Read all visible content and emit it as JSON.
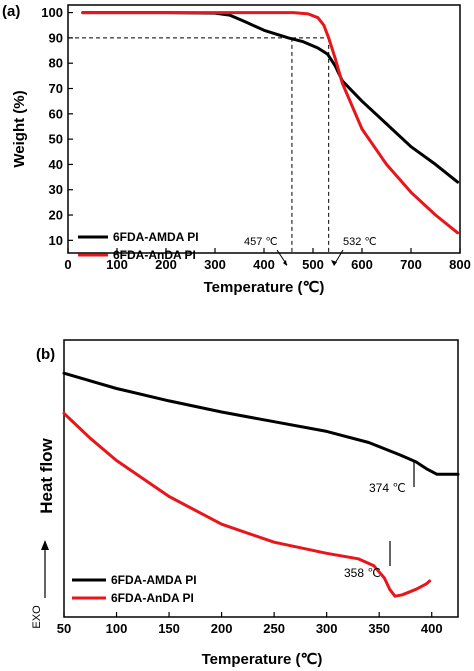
{
  "chart_data": [
    {
      "panel_label": "(a)",
      "type": "line",
      "xlabel": "Temperature (℃)",
      "ylabel": "Weight (%)",
      "xlim": [
        0,
        800
      ],
      "ylim": [
        5,
        103
      ],
      "xticks": [
        0,
        100,
        200,
        300,
        400,
        500,
        600,
        700,
        800
      ],
      "yticks": [
        10,
        20,
        30,
        40,
        50,
        60,
        70,
        80,
        90,
        100
      ],
      "grid": false,
      "legend_position": "bottom-left",
      "series": [
        {
          "name": "6FDA-AMDA PI",
          "color": "#000000",
          "points": [
            [
              30,
              100
            ],
            [
              100,
              100
            ],
            [
              200,
              100
            ],
            [
              300,
              99.8
            ],
            [
              330,
              99
            ],
            [
              360,
              96.5
            ],
            [
              400,
              93
            ],
            [
              450,
              90
            ],
            [
              480,
              88.5
            ],
            [
              510,
              86
            ],
            [
              530,
              83.5
            ],
            [
              545,
              79
            ],
            [
              560,
              73
            ],
            [
              600,
              65
            ],
            [
              650,
              56
            ],
            [
              700,
              47
            ],
            [
              750,
              40
            ],
            [
              795,
              33
            ]
          ]
        },
        {
          "name": "6FDA-AnDA PI",
          "color": "#e8161b",
          "points": [
            [
              30,
              100
            ],
            [
              200,
              100
            ],
            [
              400,
              100
            ],
            [
              460,
              100
            ],
            [
              490,
              99.5
            ],
            [
              510,
              98
            ],
            [
              522,
              95
            ],
            [
              532,
              90
            ],
            [
              545,
              82
            ],
            [
              560,
              72
            ],
            [
              600,
              54
            ],
            [
              650,
              40
            ],
            [
              700,
              29
            ],
            [
              750,
              20
            ],
            [
              795,
              13
            ]
          ]
        }
      ],
      "annotations": [
        {
          "text": "457 ℃",
          "x": 457
        },
        {
          "text": "532 ℃",
          "x": 532
        }
      ],
      "reference_level": 90
    },
    {
      "panel_label": "(b)",
      "type": "line",
      "xlabel": "Temperature (℃)",
      "ylabel": "Heat flow",
      "exo_label": "EXO",
      "xlim": [
        50,
        425
      ],
      "ylim": [
        0,
        100
      ],
      "xticks": [
        50,
        100,
        150,
        200,
        250,
        300,
        350,
        400
      ],
      "grid": false,
      "legend_position": "bottom-left",
      "series": [
        {
          "name": "6FDA-AMDA PI",
          "color": "#000000",
          "points": [
            [
              50,
              88
            ],
            [
              100,
              82.5
            ],
            [
              150,
              78
            ],
            [
              200,
              74
            ],
            [
              250,
              70.5
            ],
            [
              300,
              67
            ],
            [
              340,
              63
            ],
            [
              370,
              58.5
            ],
            [
              385,
              56
            ],
            [
              395,
              53.5
            ],
            [
              405,
              51.5
            ],
            [
              415,
              51.5
            ],
            [
              425,
              51.5
            ]
          ]
        },
        {
          "name": "6FDA-AnDA PI",
          "color": "#e8161b",
          "points": [
            [
              50,
              73.5
            ],
            [
              75,
              64.5
            ],
            [
              100,
              56.5
            ],
            [
              150,
              43.5
            ],
            [
              200,
              33.5
            ],
            [
              250,
              27
            ],
            [
              300,
              23
            ],
            [
              330,
              21
            ],
            [
              345,
              18.5
            ],
            [
              355,
              14
            ],
            [
              360,
              10
            ],
            [
              365,
              7.5
            ],
            [
              372,
              8
            ],
            [
              385,
              10
            ],
            [
              395,
              12
            ],
            [
              398,
              13
            ]
          ]
        }
      ],
      "annotations": [
        {
          "text": "374 ℃",
          "x": 382
        },
        {
          "text": "358 ℃",
          "x": 358
        }
      ]
    }
  ]
}
